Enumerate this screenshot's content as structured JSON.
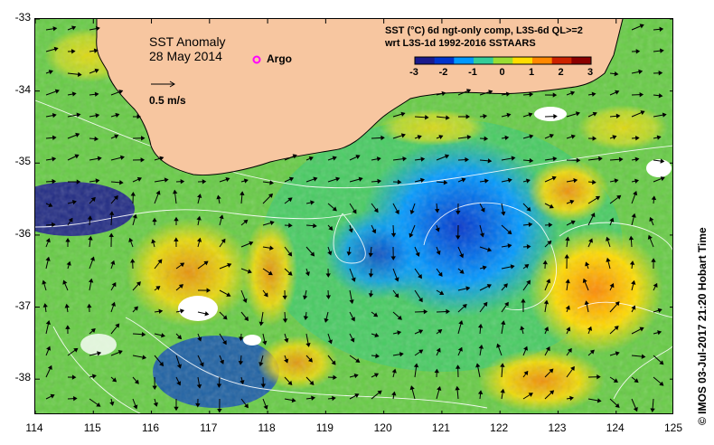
{
  "map": {
    "title": "SST Anomaly",
    "date": "28 May 2014",
    "argo_label": "Argo",
    "speed_label": "0.5 m/s",
    "colorbar_title_line1": "SST (°C) 6d ngt-only comp, L3S-6d QL>=2",
    "colorbar_title_line2": "wrt L3S-1d 1992-2016 SSTAARS",
    "colorbar_ticks": [
      "-3",
      "-2",
      "-1",
      "0",
      "1",
      "2",
      "3"
    ],
    "colorbar_range": [
      -3,
      3
    ],
    "colorbar_colors": [
      "#1a1a8c",
      "#0033cc",
      "#0099ff",
      "#33cc99",
      "#99dd33",
      "#ffdd00",
      "#ff8800",
      "#cc2200",
      "#8b0000"
    ],
    "land_color": "#f7c6a0",
    "credit": "© IMOS 03-Jul-2017 21:20 Hobart Time",
    "x_ticks": [
      "114",
      "115",
      "116",
      "117",
      "118",
      "119",
      "120",
      "121",
      "122",
      "123",
      "124",
      "125"
    ],
    "y_ticks": [
      "-33",
      "-34",
      "-35",
      "-36",
      "-37",
      "-38"
    ],
    "lon_range": [
      114,
      125
    ],
    "lat_range": [
      -38.5,
      -33
    ]
  }
}
